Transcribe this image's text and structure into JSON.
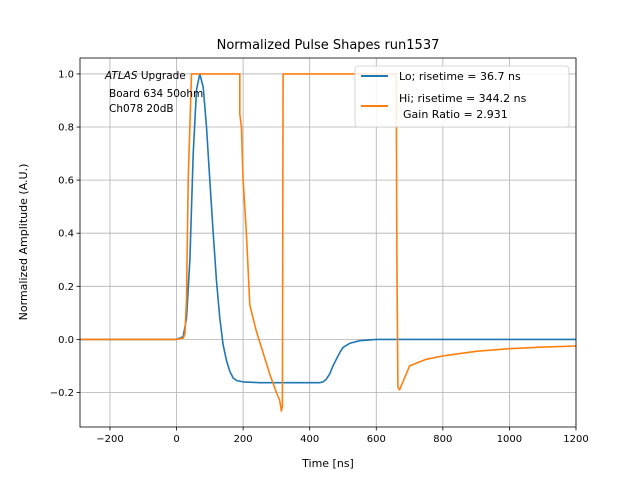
{
  "chart_data": {
    "type": "line",
    "title": "Normalized Pulse Shapes run1537",
    "xlabel": "Time [ns]",
    "ylabel": "Normalized Amplitude (A.U.)",
    "xlim": [
      -290,
      1200
    ],
    "ylim": [
      -0.33,
      1.06
    ],
    "xticks": [
      -200,
      0,
      200,
      400,
      600,
      800,
      1000,
      1200
    ],
    "xtick_labels": [
      "−200",
      "0",
      "200",
      "400",
      "600",
      "800",
      "1000",
      "1200"
    ],
    "yticks": [
      -0.2,
      0.0,
      0.2,
      0.4,
      0.6,
      0.8,
      1.0
    ],
    "ytick_labels": [
      "−0.2",
      "0.0",
      "0.2",
      "0.4",
      "0.6",
      "0.8",
      "1.0"
    ],
    "grid": true,
    "legend_position": "top-right",
    "annotation": {
      "line1_italic": "ATLAS",
      "line1_rest": " Upgrade",
      "line2": "Board 634 50ohm",
      "line3": "Ch078 20dB"
    },
    "series": [
      {
        "name": "Lo; risetime = 36.7 ns",
        "color": "#1f77b4",
        "x": [
          -290,
          0,
          20,
          30,
          40,
          50,
          60,
          70,
          80,
          90,
          100,
          110,
          120,
          130,
          140,
          150,
          160,
          170,
          180,
          200,
          250,
          300,
          350,
          400,
          430,
          440,
          450,
          460,
          470,
          480,
          490,
          500,
          520,
          550,
          600,
          700,
          1200
        ],
        "y": [
          0.0,
          0.0,
          0.01,
          0.08,
          0.3,
          0.7,
          0.94,
          1.0,
          0.95,
          0.8,
          0.6,
          0.4,
          0.22,
          0.08,
          -0.02,
          -0.08,
          -0.12,
          -0.145,
          -0.155,
          -0.16,
          -0.163,
          -0.163,
          -0.163,
          -0.163,
          -0.163,
          -0.16,
          -0.15,
          -0.13,
          -0.1,
          -0.075,
          -0.05,
          -0.03,
          -0.015,
          -0.005,
          0.0,
          0.0,
          0.0
        ]
      },
      {
        "name": "Hi; risetime = 344.2 ns",
        "legend_second_line": "Gain Ratio = 2.931",
        "color": "#ff7f0e",
        "x": [
          -290,
          0,
          20,
          25,
          30,
          35,
          45,
          190,
          190,
          195,
          200,
          210,
          220,
          240,
          260,
          280,
          300,
          310,
          315,
          318,
          320,
          325,
          660,
          662,
          665,
          670,
          680,
          700,
          750,
          800,
          900,
          1000,
          1100,
          1200
        ],
        "y": [
          0.0,
          0.0,
          0.005,
          0.02,
          0.15,
          0.6,
          1.0,
          1.0,
          0.85,
          0.8,
          0.6,
          0.4,
          0.13,
          0.03,
          -0.05,
          -0.13,
          -0.2,
          -0.23,
          -0.27,
          -0.25,
          1.0,
          1.0,
          1.0,
          0.3,
          -0.18,
          -0.19,
          -0.16,
          -0.1,
          -0.075,
          -0.062,
          -0.045,
          -0.035,
          -0.029,
          -0.025
        ]
      }
    ]
  }
}
